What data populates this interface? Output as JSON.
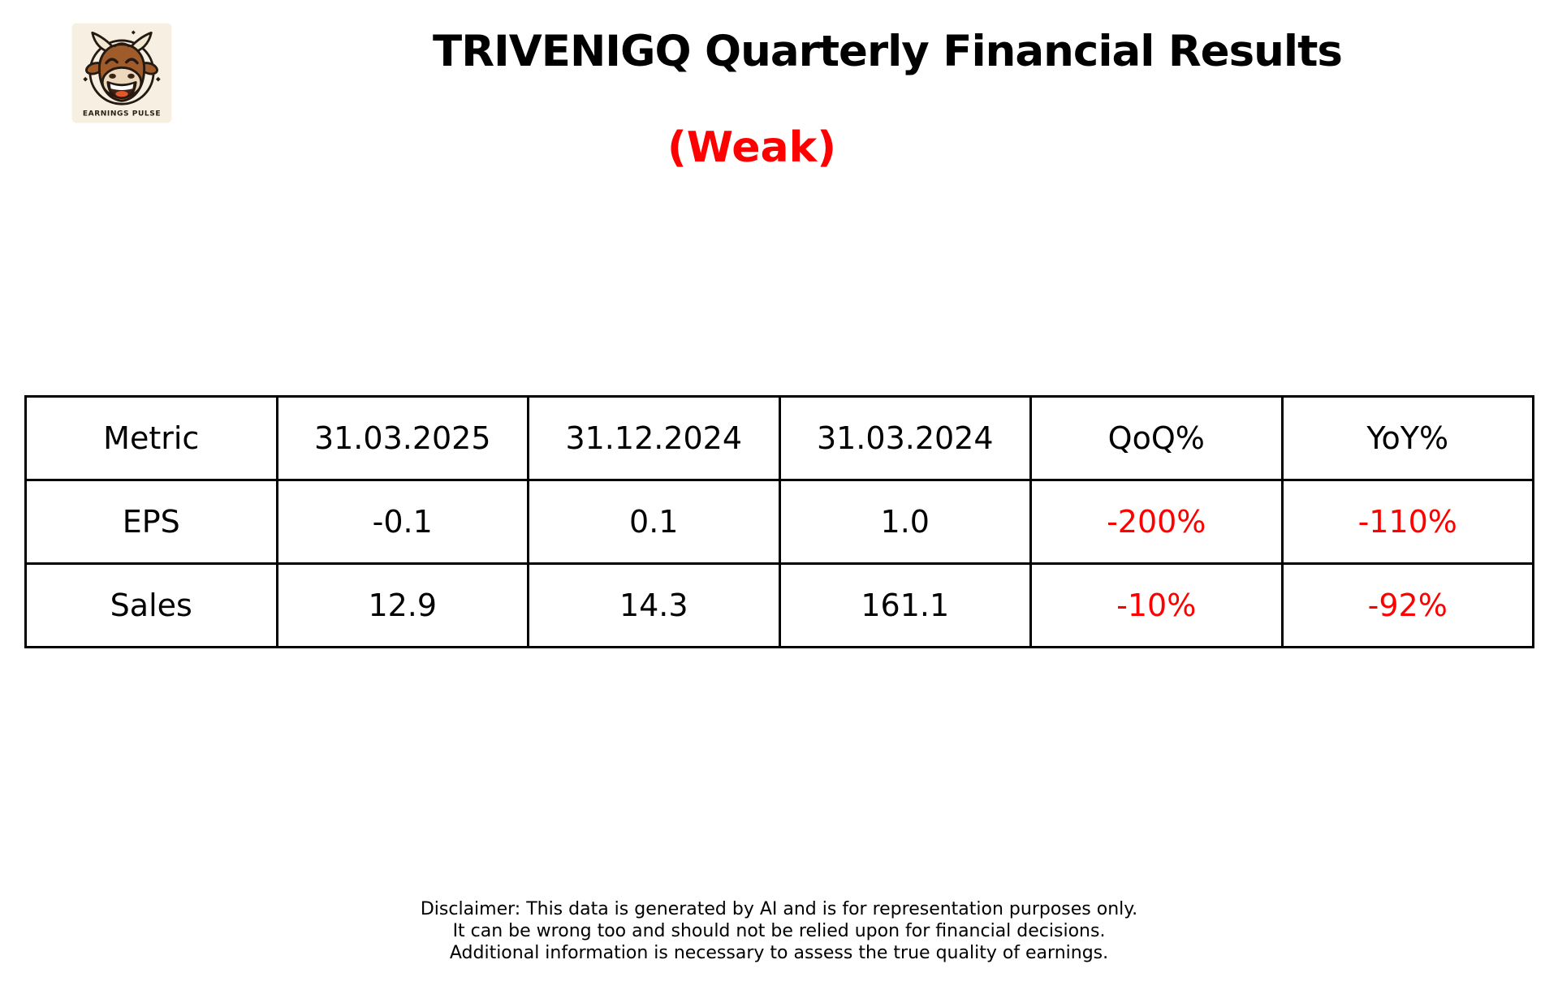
{
  "logo": {
    "brand": "EARNINGS PULSE",
    "icon": "laughing-bull-icon",
    "colors": {
      "background": "#f7f0e2",
      "bull": "#a05b2b",
      "outline": "#241a12",
      "muzzle": "#ecd9bd",
      "tongue": "#e2582e",
      "horn": "#f2e8d0",
      "text": "#2b2014"
    }
  },
  "header": {
    "title": "TRIVENIGQ Quarterly Financial Results",
    "verdict": "(Weak)",
    "verdict_color": "#ff0000"
  },
  "table": {
    "columns": [
      "Metric",
      "31.03.2025",
      "31.12.2024",
      "31.03.2024",
      "QoQ%",
      "YoY%"
    ],
    "rows": [
      {
        "cells": [
          "EPS",
          "-0.1",
          "0.1",
          "1.0",
          "-200%",
          "-110%"
        ],
        "red_from": 4
      },
      {
        "cells": [
          "Sales",
          "12.9",
          "14.3",
          "161.1",
          "-10%",
          "-92%"
        ],
        "red_from": 4
      }
    ],
    "negative_color": "#ff0000",
    "border_color": "#000000"
  },
  "chart_data": {
    "type": "table",
    "title": "TRIVENIGQ Quarterly Financial Results",
    "subtitle": "(Weak)",
    "columns": [
      "Metric",
      "31.03.2025",
      "31.12.2024",
      "31.03.2024",
      "QoQ%",
      "YoY%"
    ],
    "rows": [
      [
        "EPS",
        -0.1,
        0.1,
        1.0,
        "-200%",
        "-110%"
      ],
      [
        "Sales",
        12.9,
        14.3,
        161.1,
        "-10%",
        "-92%"
      ]
    ]
  },
  "disclaimer": {
    "lines": [
      "Disclaimer: This data is generated by AI and is for representation purposes only.",
      "It can be wrong too and should not be relied upon for financial decisions.",
      "Additional information is necessary to assess the true quality of earnings."
    ]
  }
}
